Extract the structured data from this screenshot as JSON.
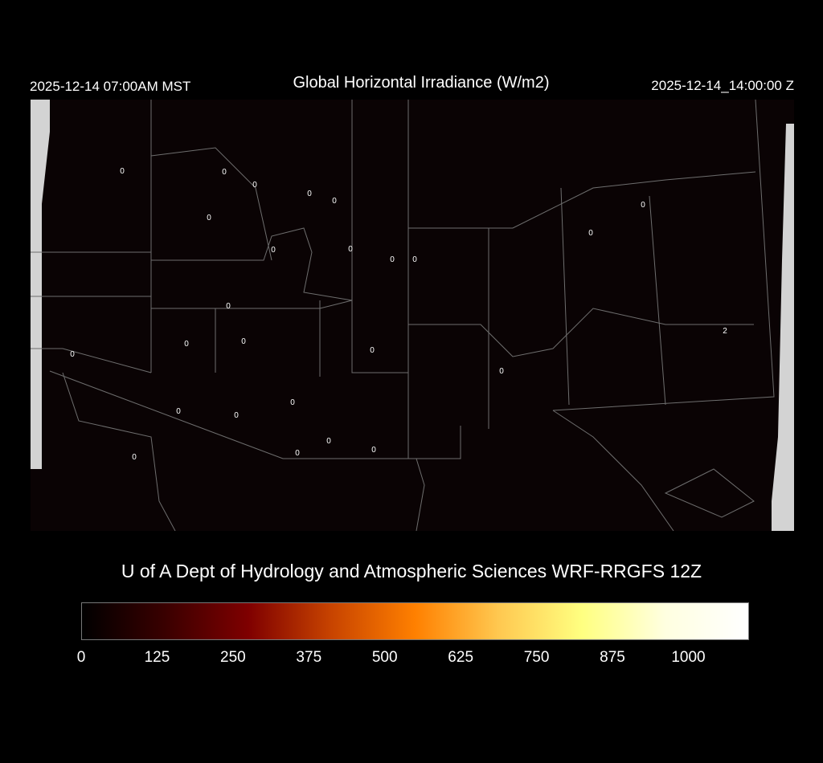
{
  "header": {
    "local_time": "2025-12-14 07:00AM MST",
    "title": "Global Horizontal Irradiance (W/m2)",
    "utc_time": "2025-12-14_14:00:00 Z"
  },
  "map": {
    "background": "#0a0304",
    "border_color": "#6e6e6e",
    "nodata_color": "#d3d3d3",
    "station_values": [
      "0",
      "0",
      "0",
      "0",
      "0",
      "0",
      "0",
      "0",
      "0",
      "0",
      "0",
      "0",
      "0",
      "0",
      "0",
      "0",
      "0",
      "0",
      "2",
      "0",
      "0",
      "0",
      "0",
      "0",
      "0",
      "0"
    ]
  },
  "footer": {
    "credit": "U of A Dept of Hydrology and Atmospheric Sciences WRF-RRGFS 12Z"
  },
  "colorbar": {
    "min": 0,
    "max": 1100,
    "ticks": [
      "0",
      "125",
      "250",
      "375",
      "500",
      "625",
      "750",
      "875",
      "1000"
    ],
    "colors": [
      "#000000",
      "#3a0000",
      "#7f0000",
      "#c84400",
      "#ff8000",
      "#ffc850",
      "#ffff80",
      "#ffffe0",
      "#ffffff"
    ]
  }
}
